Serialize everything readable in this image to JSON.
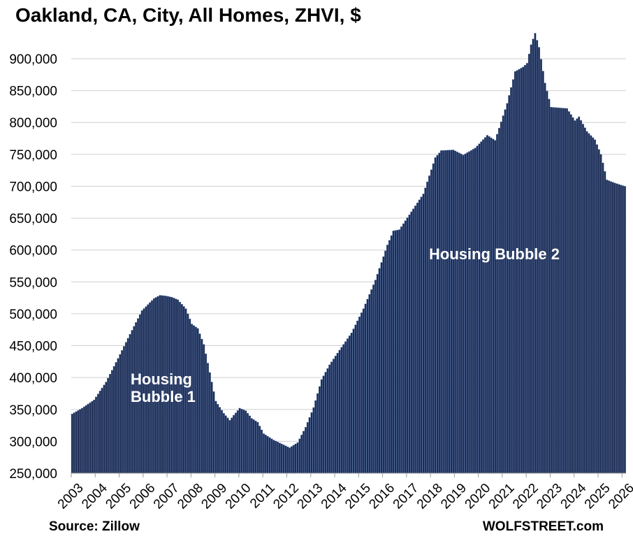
{
  "chart_data": {
    "type": "bar",
    "title": "Oakland, CA, City, All Homes, ZHVI, $",
    "xlabel": "",
    "ylabel": "",
    "ylim": [
      250000,
      940000
    ],
    "y_ticks": [
      "250,000",
      "300,000",
      "350,000",
      "400,000",
      "450,000",
      "500,000",
      "550,000",
      "600,000",
      "650,000",
      "700,000",
      "750,000",
      "800,000",
      "850,000",
      "900,000"
    ],
    "x_tick_labels": [
      "2003",
      "2004",
      "2005",
      "2006",
      "2007",
      "2008",
      "2009",
      "2010",
      "2011",
      "2012",
      "2013",
      "2014",
      "2015",
      "2016",
      "2017",
      "2018",
      "2019",
      "2020",
      "2021",
      "2022",
      "2023",
      "2024",
      "2025",
      "2026"
    ],
    "grid": true,
    "legend": "none",
    "bar_color": "#1e2b4f",
    "bar_edge_color": "#4a6ea8",
    "frequency": "monthly",
    "start": "2003-01",
    "end": "2026-02",
    "keypoints": [
      [
        "2003-01",
        343000
      ],
      [
        "2003-06",
        352000
      ],
      [
        "2003-12",
        365000
      ],
      [
        "2004-06",
        393000
      ],
      [
        "2004-12",
        430000
      ],
      [
        "2005-06",
        468000
      ],
      [
        "2005-12",
        505000
      ],
      [
        "2006-06",
        524000
      ],
      [
        "2006-09",
        529000
      ],
      [
        "2006-12",
        528000
      ],
      [
        "2007-03",
        526000
      ],
      [
        "2007-06",
        522000
      ],
      [
        "2007-10",
        508000
      ],
      [
        "2008-01",
        484000
      ],
      [
        "2008-04",
        477000
      ],
      [
        "2008-07",
        452000
      ],
      [
        "2008-10",
        408000
      ],
      [
        "2009-01",
        363000
      ],
      [
        "2009-05",
        344000
      ],
      [
        "2009-08",
        333000
      ],
      [
        "2009-10",
        341000
      ],
      [
        "2010-01",
        352000
      ],
      [
        "2010-04",
        348000
      ],
      [
        "2010-07",
        336000
      ],
      [
        "2010-10",
        330000
      ],
      [
        "2011-01",
        312000
      ],
      [
        "2011-06",
        302000
      ],
      [
        "2011-12",
        293000
      ],
      [
        "2012-02",
        290000
      ],
      [
        "2012-06",
        298000
      ],
      [
        "2012-10",
        322000
      ],
      [
        "2013-02",
        353000
      ],
      [
        "2013-06",
        397000
      ],
      [
        "2013-10",
        420000
      ],
      [
        "2014-03",
        443000
      ],
      [
        "2014-09",
        470000
      ],
      [
        "2015-03",
        508000
      ],
      [
        "2015-09",
        553000
      ],
      [
        "2016-03",
        608000
      ],
      [
        "2016-06",
        630000
      ],
      [
        "2016-09",
        632000
      ],
      [
        "2017-03",
        660000
      ],
      [
        "2017-09",
        688000
      ],
      [
        "2018-03",
        745000
      ],
      [
        "2018-06",
        756000
      ],
      [
        "2018-12",
        757000
      ],
      [
        "2019-05",
        749000
      ],
      [
        "2019-11",
        760000
      ],
      [
        "2020-05",
        780000
      ],
      [
        "2020-09",
        772000
      ],
      [
        "2021-03",
        830000
      ],
      [
        "2021-07",
        880000
      ],
      [
        "2021-11",
        887000
      ],
      [
        "2022-01",
        893000
      ],
      [
        "2022-03",
        922000
      ],
      [
        "2022-05",
        940000
      ],
      [
        "2022-07",
        918000
      ],
      [
        "2022-10",
        862000
      ],
      [
        "2023-01",
        824000
      ],
      [
        "2023-05",
        823000
      ],
      [
        "2023-09",
        822000
      ],
      [
        "2024-01",
        803000
      ],
      [
        "2024-03",
        809000
      ],
      [
        "2024-07",
        786000
      ],
      [
        "2024-11",
        773000
      ],
      [
        "2025-02",
        750000
      ],
      [
        "2025-05",
        710000
      ],
      [
        "2025-09",
        705000
      ],
      [
        "2026-02",
        700000
      ]
    ]
  },
  "annotations": {
    "bubble1_line1": "Housing",
    "bubble1_line2": "Bubble 1",
    "bubble2": "Housing Bubble 2"
  },
  "footer": {
    "source": "Source: Zillow",
    "brand": "WOLFSTREET.com"
  }
}
